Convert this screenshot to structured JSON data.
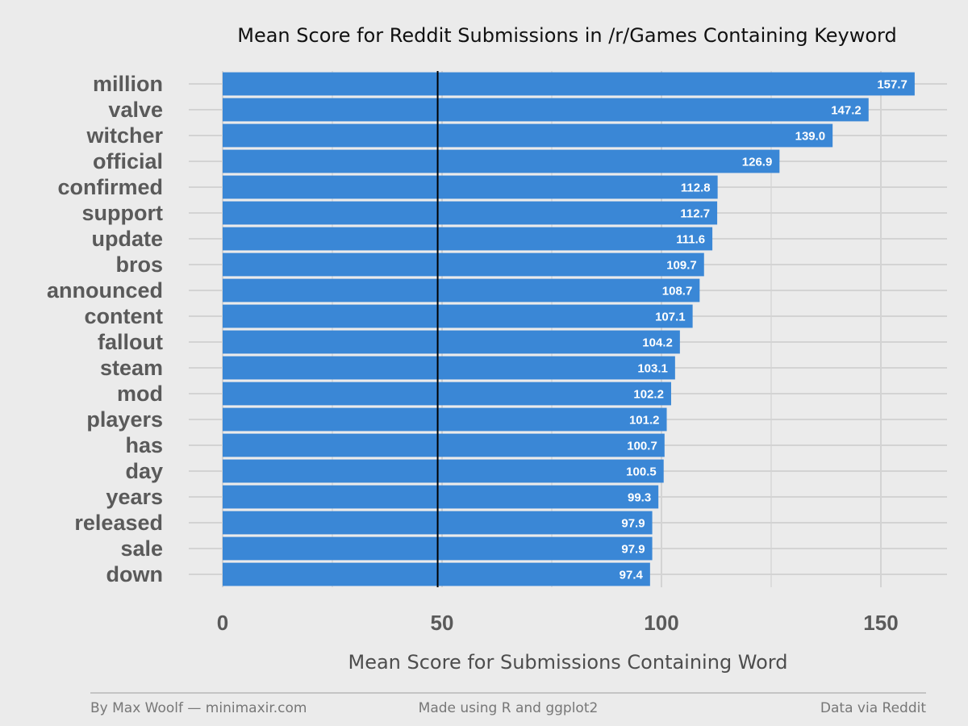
{
  "chart_data": {
    "type": "bar",
    "orientation": "horizontal",
    "title": "Mean Score for Reddit Submissions in /r/Games Containing Keyword",
    "xlabel": "Mean Score for Submissions Containing Word",
    "ylabel": "",
    "categories": [
      "million",
      "valve",
      "witcher",
      "official",
      "confirmed",
      "support",
      "update",
      "bros",
      "announced",
      "content",
      "fallout",
      "steam",
      "mod",
      "players",
      "has",
      "day",
      "years",
      "released",
      "sale",
      "down"
    ],
    "values": [
      157.7,
      147.2,
      139.0,
      126.9,
      112.8,
      112.7,
      111.6,
      109.7,
      108.7,
      107.1,
      104.2,
      103.1,
      102.2,
      101.2,
      100.7,
      100.5,
      99.3,
      97.9,
      97.9,
      97.4
    ],
    "value_labels": [
      "157.7",
      "147.2",
      "139.0",
      "126.9",
      "112.8",
      "112.7",
      "111.6",
      "109.7",
      "108.7",
      "107.1",
      "104.2",
      "103.1",
      "102.2",
      "101.2",
      "100.7",
      "100.5",
      "99.3",
      "97.9",
      "97.9",
      "97.4"
    ],
    "xlim": [
      0,
      165
    ],
    "x_ticks": [
      0,
      50,
      100,
      150
    ],
    "x_tick_labels": [
      "0",
      "50",
      "100",
      "150"
    ],
    "reference_line": 49,
    "grid": true,
    "bar_color": "#3a87d6",
    "reference_line_color": "#000000"
  },
  "footer": {
    "left": "By Max Woolf — minimaxir.com",
    "center": "Made using R and ggplot2",
    "right": "Data via Reddit"
  }
}
